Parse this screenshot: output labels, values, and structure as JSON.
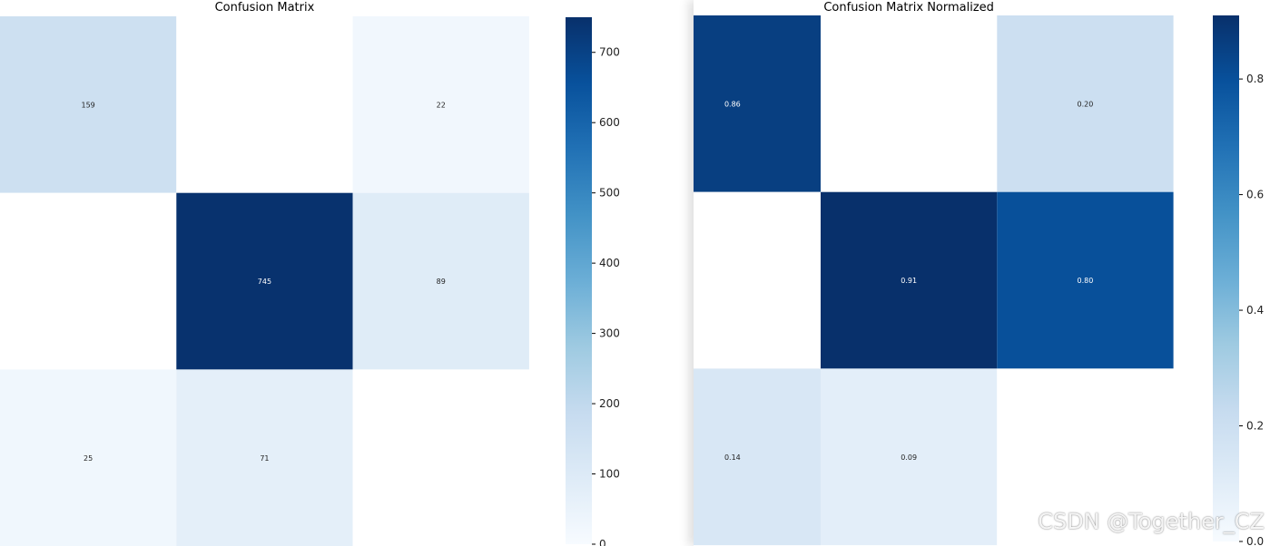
{
  "chart_data": [
    {
      "type": "heatmap",
      "title": "Confusion Matrix",
      "matrix": [
        [
          159,
          null,
          22
        ],
        [
          null,
          745,
          89
        ],
        [
          25,
          71,
          null
        ]
      ],
      "cell_labels": [
        [
          "159",
          "",
          "22"
        ],
        [
          "",
          "745",
          "89"
        ],
        [
          "25",
          "71",
          ""
        ]
      ],
      "colorbar": {
        "min": 0,
        "max": 750,
        "ticks": [
          0,
          100,
          200,
          300,
          400,
          500,
          600,
          700
        ]
      },
      "colormap": "Blues"
    },
    {
      "type": "heatmap",
      "title": "Confusion Matrix Normalized",
      "matrix": [
        [
          0.86,
          null,
          0.2
        ],
        [
          null,
          0.91,
          0.8
        ],
        [
          0.14,
          0.09,
          null
        ]
      ],
      "cell_labels": [
        [
          "0.86",
          "",
          "0.20"
        ],
        [
          "",
          "0.91",
          "0.80"
        ],
        [
          "0.14",
          "0.09",
          ""
        ]
      ],
      "colorbar": {
        "min": 0,
        "max": 0.91,
        "ticks": [
          0.0,
          0.2,
          0.4,
          0.6,
          0.8
        ]
      },
      "colormap": "Blues"
    }
  ],
  "overlay": {
    "watermark": "CSDN @Together_CZ",
    "nav_icon": "chevron-right-icon"
  }
}
